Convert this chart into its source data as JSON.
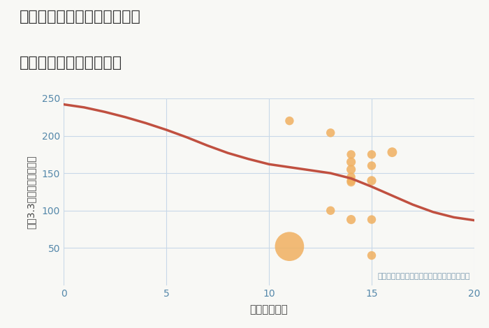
{
  "title_line1": "兵庫県西宮市甲子園一番町の",
  "title_line2": "駅距離別中古戸建て価格",
  "xlabel": "駅距離（分）",
  "ylabel": "坪（3.3㎡）単価（万円）",
  "annotation": "円の大きさは、取引のあった物件面積を示す",
  "background_color": "#f8f8f5",
  "grid_color": "#c8d8e8",
  "line_color": "#c05040",
  "dot_color": "#f0b060",
  "dot_alpha": 0.85,
  "xlim": [
    0,
    20
  ],
  "ylim": [
    0,
    250
  ],
  "xticks": [
    0,
    5,
    10,
    15,
    20
  ],
  "yticks": [
    50,
    100,
    150,
    200,
    250
  ],
  "tick_color": "#5588aa",
  "label_color": "#444444",
  "scatter_x": [
    11,
    13,
    14,
    14,
    14,
    14,
    14,
    14,
    15,
    15,
    15,
    16,
    13,
    14,
    15,
    11,
    15
  ],
  "scatter_y": [
    220,
    204,
    175,
    165,
    155,
    145,
    140,
    138,
    175,
    160,
    140,
    178,
    100,
    88,
    88,
    52,
    40
  ],
  "scatter_size": [
    80,
    80,
    80,
    90,
    90,
    80,
    80,
    80,
    80,
    80,
    90,
    100,
    80,
    90,
    80,
    900,
    80
  ],
  "curve_x": [
    0,
    1,
    2,
    3,
    4,
    5,
    6,
    7,
    8,
    9,
    10,
    11,
    12,
    13,
    14,
    15,
    16,
    17,
    18,
    19,
    20
  ],
  "curve_y": [
    242,
    238,
    232,
    225,
    217,
    208,
    198,
    187,
    177,
    169,
    162,
    158,
    154,
    150,
    143,
    132,
    120,
    108,
    98,
    91,
    87
  ]
}
